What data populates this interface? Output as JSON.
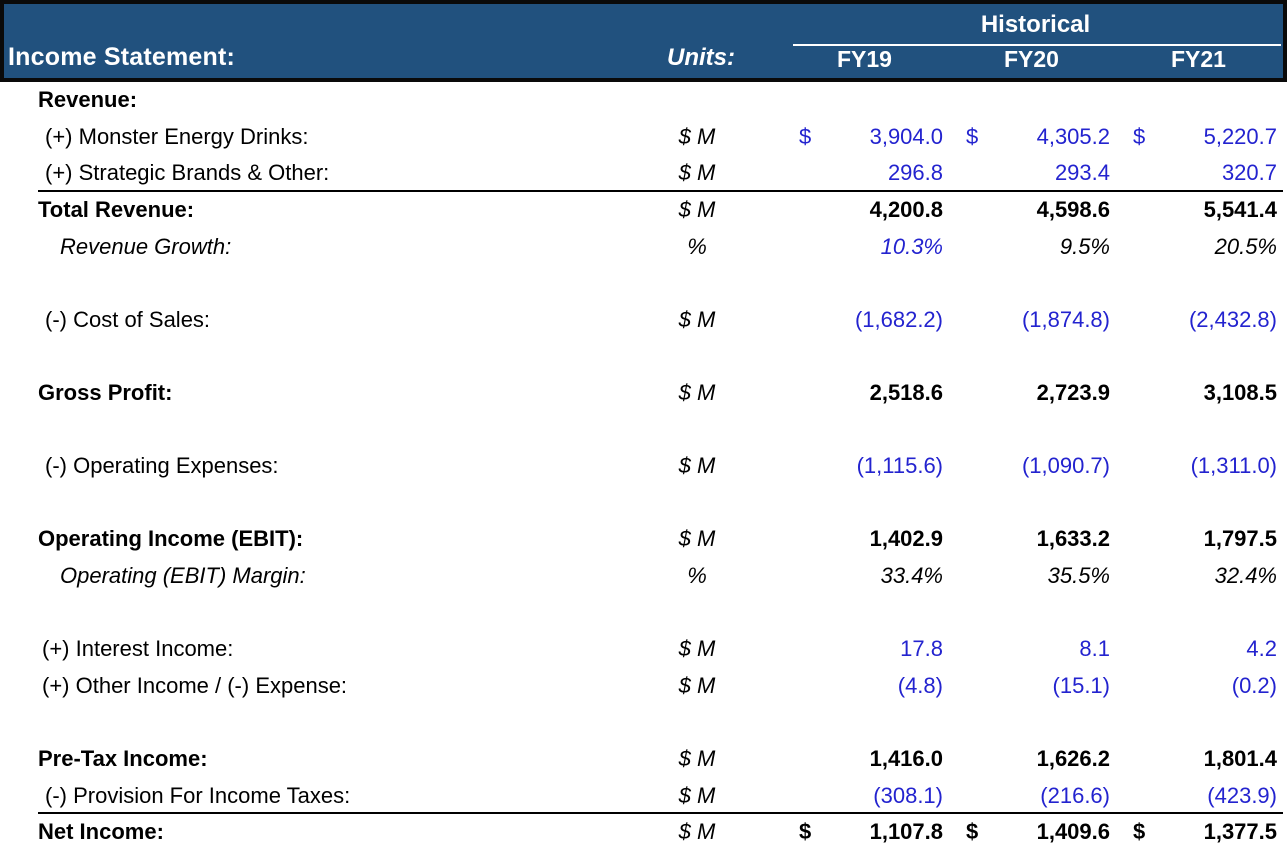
{
  "header": {
    "title": "Income Statement:",
    "units_label": "Units:",
    "group_label": "Historical",
    "columns": [
      "FY19",
      "FY20",
      "FY21"
    ]
  },
  "colors": {
    "header_bg": "#21517E",
    "input_blue": "#2323CF",
    "header_text": "#FFFFFF",
    "body_text": "#000000"
  },
  "rows": [
    {
      "label": "Revenue:",
      "unit": "",
      "values": [
        "",
        "",
        ""
      ],
      "style": "section"
    },
    {
      "label": "(+) Monster Energy Drinks:",
      "unit": "$ M",
      "values": [
        "3,904.0",
        "4,305.2",
        "5,220.7"
      ],
      "style": "item",
      "color": "blue",
      "dollar": true
    },
    {
      "label": "(+) Strategic Brands & Other:",
      "unit": "$ M",
      "values": [
        "296.8",
        "293.4",
        "320.7"
      ],
      "style": "item",
      "color": "blue",
      "border_bottom": true
    },
    {
      "label": "Total Revenue:",
      "unit": "$ M",
      "values": [
        "4,200.8",
        "4,598.6",
        "5,541.4"
      ],
      "style": "section",
      "color": "black"
    },
    {
      "label": "Revenue Growth:",
      "unit": "%",
      "values": [
        "10.3%",
        "9.5%",
        "20.5%"
      ],
      "style": "ratio",
      "colors": [
        "blue",
        "black",
        "black"
      ]
    },
    {
      "style": "blank"
    },
    {
      "label": "(-) Cost of Sales:",
      "unit": "$ M",
      "values": [
        "(1,682.2)",
        "(1,874.8)",
        "(2,432.8)"
      ],
      "style": "item",
      "color": "blue"
    },
    {
      "style": "blank"
    },
    {
      "label": "Gross Profit:",
      "unit": "$ M",
      "values": [
        "2,518.6",
        "2,723.9",
        "3,108.5"
      ],
      "style": "section",
      "color": "black"
    },
    {
      "style": "blank"
    },
    {
      "label": "(-) Operating Expenses:",
      "unit": "$ M",
      "values": [
        "(1,115.6)",
        "(1,090.7)",
        "(1,311.0)"
      ],
      "style": "item",
      "color": "blue"
    },
    {
      "style": "blank"
    },
    {
      "label": "Operating Income (EBIT):",
      "unit": "$ M",
      "values": [
        "1,402.9",
        "1,633.2",
        "1,797.5"
      ],
      "style": "section",
      "color": "black"
    },
    {
      "label": "Operating (EBIT) Margin:",
      "unit": "%",
      "values": [
        "33.4%",
        "35.5%",
        "32.4%"
      ],
      "style": "ratio",
      "color": "black"
    },
    {
      "style": "blank"
    },
    {
      "label": "(+) Interest Income:",
      "unit": "$ M",
      "values": [
        "17.8",
        "8.1",
        "4.2"
      ],
      "style": "item",
      "color": "blue",
      "indent": 42
    },
    {
      "label": "(+) Other Income / (-) Expense:",
      "unit": "$ M",
      "values": [
        "(4.8)",
        "(15.1)",
        "(0.2)"
      ],
      "style": "item",
      "color": "blue",
      "indent": 42
    },
    {
      "style": "blank"
    },
    {
      "label": "Pre-Tax Income:",
      "unit": "$ M",
      "values": [
        "1,416.0",
        "1,626.2",
        "1,801.4"
      ],
      "style": "section",
      "color": "black"
    },
    {
      "label": "(-) Provision For Income Taxes:",
      "unit": "$ M",
      "values": [
        "(308.1)",
        "(216.6)",
        "(423.9)"
      ],
      "style": "item",
      "color": "blue",
      "border_bottom": true
    },
    {
      "label": "Net Income:",
      "unit": "$ M",
      "values": [
        "1,107.8",
        "1,409.6",
        "1,377.5"
      ],
      "style": "section",
      "color": "black",
      "dollar": true
    }
  ]
}
